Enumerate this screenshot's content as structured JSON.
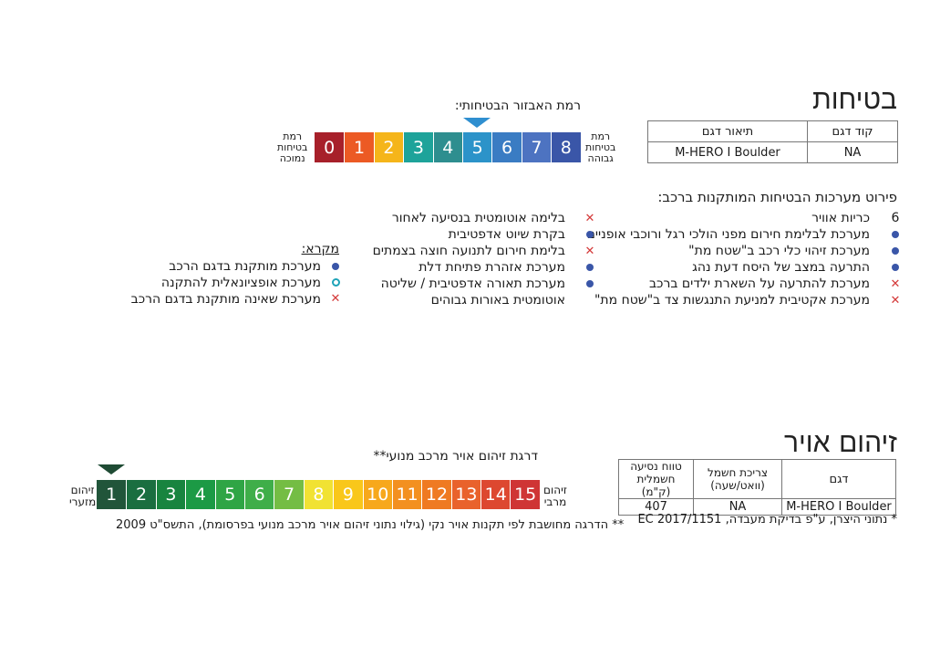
{
  "safety": {
    "title": "בטיחות",
    "table": {
      "col_code": "קוד דגם",
      "col_desc": "תיאור דגם",
      "code": "NA",
      "desc": "M-HERO I Boulder"
    },
    "scale_title": "רמת האבזור הבטיחותי:",
    "low_label": [
      "רמת",
      "בטיחות",
      "נמוכה"
    ],
    "high_label": [
      "רמת",
      "בטיחות",
      "גבוהה"
    ],
    "levels": [
      "0",
      "1",
      "2",
      "3",
      "4",
      "5",
      "6",
      "7",
      "8"
    ],
    "level_colors": [
      "#a7202a",
      "#ec5a24",
      "#f5b51a",
      "#1ea39a",
      "#2e8e8f",
      "#2c93c9",
      "#3a7cc3",
      "#4d73c1",
      "#3a56a8"
    ],
    "selected_level": 5,
    "systems_title": "פירוט מערכות הבטיחות המותקנות ברכב:",
    "right_column": [
      {
        "status": "count",
        "count": "6",
        "text": "כריות אוויר"
      },
      {
        "status": "installed",
        "text": "מערכת לבלימת חירום מפני הולכי רגל ורוכבי אופניים"
      },
      {
        "status": "installed",
        "text": "מערכת זיהוי כלי רכב ב\"שטח מת\""
      },
      {
        "status": "installed",
        "text": "התרעה במצב של היסח דעת נהג"
      },
      {
        "status": "not_installed",
        "text": "מערכת להתרעה על השארת ילדים ברכב"
      },
      {
        "status": "not_installed",
        "text": "מערכת אקטיבית למניעת התנגשות צד ב\"שטח מת\""
      }
    ],
    "middle_column": [
      {
        "status": "not_installed",
        "text": "בלימה אוטומטית בנסיעה לאחור"
      },
      {
        "status": "installed",
        "text": "בקרת שיוט אדפטיבית"
      },
      {
        "status": "not_installed",
        "text": "בלימת חירום לתנועה חוצה בצמתים"
      },
      {
        "status": "installed",
        "text": "מערכת אזהרת פתיחת דלת"
      },
      {
        "status": "installed",
        "text": "מערכת תאורה אדפטיבית / שליטה"
      },
      {
        "status": "none",
        "text": "אוטומטית באורות גבוהים"
      }
    ],
    "legend": {
      "title": "מקרא:",
      "installed": "מערכת מותקנת בדגם הרכב",
      "optional": "מערכת אופציונאלית להתקנה",
      "not_installed": "מערכת שאינה מותקנת בדגם הרכב"
    }
  },
  "pollution": {
    "title": "זיהום אויר",
    "table": {
      "col_model": "דגם",
      "col_consumption": [
        "צריכת חשמל",
        "(וואט/שעה)"
      ],
      "col_range": [
        "טווח נסיעה",
        "חשמלית (ק\"מ)"
      ],
      "model": "M-HERO I Boulder",
      "consumption": "NA",
      "range": "407"
    },
    "footnote_right": "* נתוני היצרן, ע\"פ בדיקת מעבדה, EC 2017/1151",
    "scale_title": "דרגת זיהום אויר מרכב מנועי**",
    "min_label": [
      "זיהום",
      "מזערי"
    ],
    "max_label": [
      "זיהום",
      "מרבי"
    ],
    "levels": [
      "1",
      "2",
      "3",
      "4",
      "5",
      "6",
      "7",
      "8",
      "9",
      "10",
      "11",
      "12",
      "13",
      "14",
      "15"
    ],
    "level_colors": [
      "#21553a",
      "#1a6e40",
      "#18843f",
      "#1c9a45",
      "#2fa545",
      "#3fae49",
      "#74bd44",
      "#f1e233",
      "#f9c71a",
      "#f7a81c",
      "#f39020",
      "#ef7a22",
      "#e9622c",
      "#dd4830",
      "#cf3535"
    ],
    "selected_level": 1,
    "footnote": "** הדרגה מחושבת לפי תקנות אויר נקי (גילוי נתוני זיהום אויר מרכב מנועי בפרסומת), התשס\"ט 2009"
  }
}
